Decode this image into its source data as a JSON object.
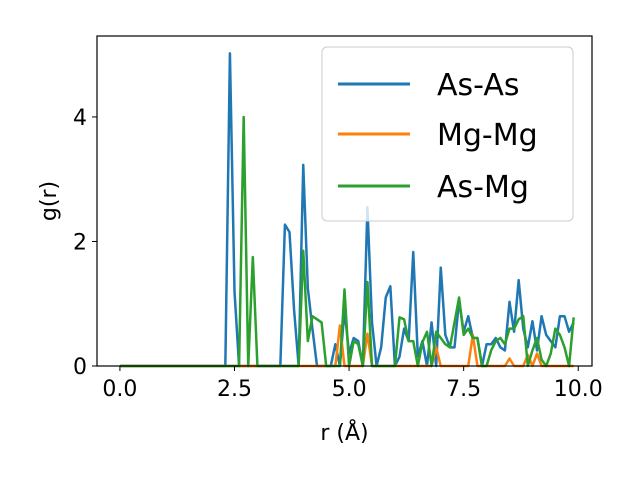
{
  "chart_data": {
    "type": "line",
    "title": "",
    "xlabel": "r (Å)",
    "ylabel": "g(r)",
    "xlim": [
      -0.5,
      10.3
    ],
    "ylim": [
      0,
      5.3
    ],
    "xticks": [
      0.0,
      2.5,
      5.0,
      7.5,
      10.0
    ],
    "xtick_labels": [
      "0.0",
      "2.5",
      "5.0",
      "7.5",
      "10.0"
    ],
    "yticks": [
      0,
      2,
      4
    ],
    "ytick_labels": [
      "0",
      "2",
      "4"
    ],
    "grid": false,
    "legend_position": "top-right",
    "series": [
      {
        "name": "As-As",
        "color": "#1f77b4",
        "points": [
          [
            0.0,
            0
          ],
          [
            2.3,
            0
          ],
          [
            2.4,
            5.02
          ],
          [
            2.5,
            1.2
          ],
          [
            2.6,
            0
          ],
          [
            3.5,
            0
          ],
          [
            3.6,
            2.27
          ],
          [
            3.7,
            2.15
          ],
          [
            3.8,
            0.9
          ],
          [
            3.9,
            0
          ],
          [
            4.0,
            3.23
          ],
          [
            4.1,
            1.25
          ],
          [
            4.2,
            0.6
          ],
          [
            4.3,
            0
          ],
          [
            4.6,
            0
          ],
          [
            4.7,
            0.35
          ],
          [
            4.8,
            0
          ],
          [
            4.9,
            0.9
          ],
          [
            5.0,
            0.2
          ],
          [
            5.1,
            0.45
          ],
          [
            5.2,
            0.4
          ],
          [
            5.3,
            0
          ],
          [
            5.4,
            2.55
          ],
          [
            5.5,
            0.7
          ],
          [
            5.6,
            0
          ],
          [
            5.7,
            0.3
          ],
          [
            5.8,
            1.1
          ],
          [
            5.9,
            1.28
          ],
          [
            6.0,
            0
          ],
          [
            6.1,
            0.15
          ],
          [
            6.2,
            0.6
          ],
          [
            6.3,
            0.4
          ],
          [
            6.4,
            1.83
          ],
          [
            6.5,
            0.15
          ],
          [
            6.6,
            0.4
          ],
          [
            6.7,
            0
          ],
          [
            6.8,
            0.7
          ],
          [
            6.9,
            0
          ],
          [
            7.0,
            1.58
          ],
          [
            7.1,
            0.5
          ],
          [
            7.2,
            0.3
          ],
          [
            7.3,
            0.3
          ],
          [
            7.4,
            1.05
          ],
          [
            7.5,
            0.55
          ],
          [
            7.6,
            0.8
          ],
          [
            7.7,
            0.45
          ],
          [
            7.8,
            0.45
          ],
          [
            7.9,
            0
          ],
          [
            8.0,
            0.35
          ],
          [
            8.1,
            0.35
          ],
          [
            8.2,
            0.45
          ],
          [
            8.3,
            0.3
          ],
          [
            8.4,
            0.25
          ],
          [
            8.5,
            1.03
          ],
          [
            8.6,
            0.55
          ],
          [
            8.7,
            1.38
          ],
          [
            8.8,
            0.6
          ],
          [
            8.9,
            0.3
          ],
          [
            9.0,
            0.72
          ],
          [
            9.1,
            0.25
          ],
          [
            9.2,
            0.8
          ],
          [
            9.3,
            0.5
          ],
          [
            9.4,
            0.4
          ],
          [
            9.5,
            0.3
          ],
          [
            9.6,
            0.8
          ],
          [
            9.7,
            0.8
          ],
          [
            9.8,
            0.55
          ],
          [
            9.9,
            0.7
          ]
        ]
      },
      {
        "name": "Mg-Mg",
        "color": "#ff7f0e",
        "points": [
          [
            0.0,
            0
          ],
          [
            4.7,
            0
          ],
          [
            4.8,
            0.65
          ],
          [
            4.9,
            0
          ],
          [
            5.3,
            0
          ],
          [
            5.4,
            0.52
          ],
          [
            5.5,
            0
          ],
          [
            6.8,
            0
          ],
          [
            6.9,
            0.3
          ],
          [
            7.0,
            0
          ],
          [
            7.6,
            0
          ],
          [
            7.7,
            0.5
          ],
          [
            7.8,
            0
          ],
          [
            8.4,
            0
          ],
          [
            8.5,
            0.12
          ],
          [
            8.6,
            0
          ],
          [
            8.8,
            0
          ],
          [
            8.9,
            0.18
          ],
          [
            9.0,
            0
          ],
          [
            9.1,
            0.2
          ],
          [
            9.2,
            0
          ],
          [
            9.9,
            0
          ]
        ]
      },
      {
        "name": "As-Mg",
        "color": "#2ca02c",
        "points": [
          [
            0.0,
            0
          ],
          [
            2.6,
            0
          ],
          [
            2.7,
            4.0
          ],
          [
            2.8,
            0
          ],
          [
            2.9,
            1.75
          ],
          [
            3.0,
            0
          ],
          [
            3.9,
            0
          ],
          [
            4.0,
            1.85
          ],
          [
            4.1,
            0.4
          ],
          [
            4.2,
            0.8
          ],
          [
            4.3,
            0.75
          ],
          [
            4.4,
            0.7
          ],
          [
            4.5,
            0
          ],
          [
            4.8,
            0
          ],
          [
            4.9,
            1.23
          ],
          [
            5.0,
            0
          ],
          [
            5.1,
            0.4
          ],
          [
            5.2,
            0.35
          ],
          [
            5.3,
            0
          ],
          [
            5.4,
            1.35
          ],
          [
            5.5,
            0
          ],
          [
            6.0,
            0
          ],
          [
            6.1,
            0.78
          ],
          [
            6.2,
            0.75
          ],
          [
            6.3,
            0.4
          ],
          [
            6.4,
            0.4
          ],
          [
            6.5,
            0
          ],
          [
            6.6,
            0.38
          ],
          [
            6.7,
            0.55
          ],
          [
            6.8,
            0
          ],
          [
            6.9,
            0.55
          ],
          [
            7.0,
            0.45
          ],
          [
            7.1,
            0.35
          ],
          [
            7.2,
            0.3
          ],
          [
            7.3,
            0.7
          ],
          [
            7.4,
            1.1
          ],
          [
            7.5,
            0.5
          ],
          [
            7.6,
            0.6
          ],
          [
            7.7,
            0.45
          ],
          [
            7.8,
            0.45
          ],
          [
            7.9,
            0
          ],
          [
            8.0,
            0
          ],
          [
            8.1,
            0.25
          ],
          [
            8.2,
            0.4
          ],
          [
            8.3,
            0.45
          ],
          [
            8.4,
            0.35
          ],
          [
            8.5,
            0.6
          ],
          [
            8.6,
            0.6
          ],
          [
            8.7,
            0.75
          ],
          [
            8.8,
            0.8
          ],
          [
            8.9,
            0
          ],
          [
            9.0,
            0.25
          ],
          [
            9.1,
            0.45
          ],
          [
            9.2,
            0.1
          ],
          [
            9.3,
            0
          ],
          [
            9.4,
            0.2
          ],
          [
            9.5,
            0.6
          ],
          [
            9.6,
            0.5
          ],
          [
            9.7,
            0.3
          ],
          [
            9.8,
            0
          ],
          [
            9.9,
            0.78
          ]
        ]
      }
    ]
  }
}
